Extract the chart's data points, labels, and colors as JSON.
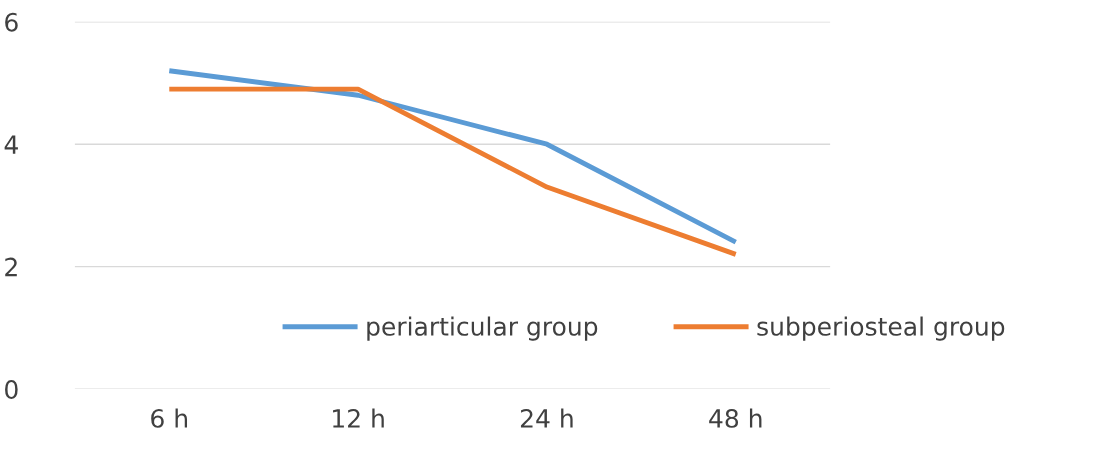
{
  "chart_data": {
    "type": "line",
    "categories": [
      "6 h",
      "12 h",
      "24 h",
      "48 h"
    ],
    "series": [
      {
        "name": "periarticular group",
        "color": "#5b9bd5",
        "values": [
          5.2,
          4.8,
          4.0,
          2.4
        ]
      },
      {
        "name": "subperiosteal group",
        "color": "#ed7d31",
        "values": [
          4.9,
          4.9,
          3.3,
          2.2
        ]
      }
    ],
    "ylim": [
      0,
      6
    ],
    "yticks": [
      0,
      2,
      4,
      6
    ],
    "grid": "y",
    "legend": "bottom",
    "marker": "none",
    "line_style": "solid"
  }
}
